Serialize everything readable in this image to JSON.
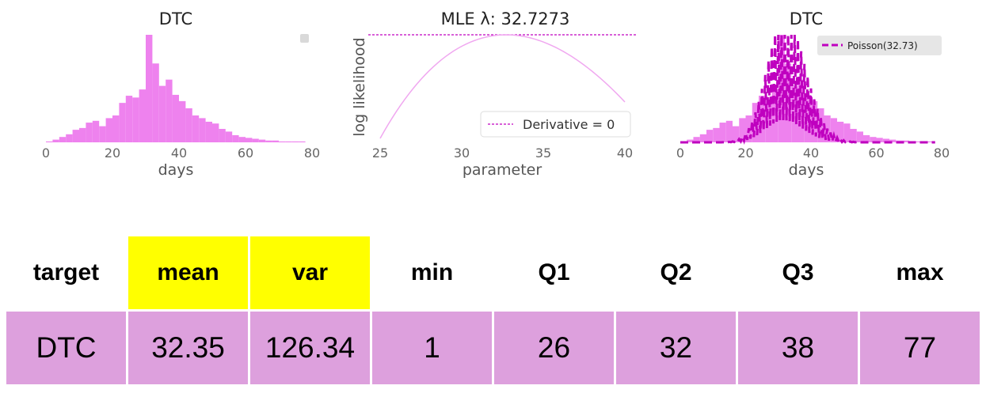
{
  "chart_data": [
    {
      "type": "bar",
      "title": "DTC",
      "xlabel": "days",
      "ylabel": "",
      "xlim": [
        0,
        80
      ],
      "x_ticks": [
        "0",
        "20",
        "40",
        "60",
        "80"
      ],
      "grid": false,
      "legend": "empty legend, top-right",
      "bin_centers": [
        1,
        3,
        5,
        7,
        9,
        11,
        13,
        15,
        17,
        19,
        21,
        23,
        25,
        27,
        29,
        31,
        33,
        35,
        37,
        39,
        41,
        43,
        45,
        47,
        49,
        51,
        53,
        55,
        57,
        59,
        61,
        63,
        65,
        67,
        69,
        71,
        73,
        75,
        77
      ],
      "values": [
        1,
        3,
        6,
        9,
        14,
        16,
        22,
        24,
        18,
        27,
        30,
        44,
        52,
        50,
        59,
        120,
        88,
        63,
        70,
        53,
        46,
        38,
        30,
        27,
        23,
        21,
        15,
        12,
        8,
        6,
        5,
        4,
        3,
        2,
        2,
        1,
        1,
        1,
        1
      ]
    },
    {
      "type": "line",
      "title": "MLE λ: 32.7273",
      "xlabel": "parameter",
      "ylabel": "log likelihood",
      "xlim": [
        25,
        40
      ],
      "x_ticks": [
        "25",
        "30",
        "35",
        "40"
      ],
      "grid": false,
      "legend": "bottom-right",
      "series": [
        {
          "name": "",
          "x_range": [
            25,
            40
          ],
          "curve": "log-likelihood of Poisson, maximum at 32.7273"
        },
        {
          "name": "Derivative = 0",
          "style": "dashed horizontal line at maximum"
        }
      ]
    },
    {
      "type": "bar",
      "title": "DTC",
      "xlabel": "days",
      "ylabel": "",
      "xlim": [
        0,
        80
      ],
      "x_ticks": [
        "0",
        "20",
        "40",
        "60",
        "80"
      ],
      "grid": false,
      "legend": "top-right",
      "bin_centers": [
        1,
        3,
        5,
        7,
        9,
        11,
        13,
        15,
        17,
        19,
        21,
        23,
        25,
        27,
        29,
        31,
        33,
        35,
        37,
        39,
        41,
        43,
        45,
        47,
        49,
        51,
        53,
        55,
        57,
        59,
        61,
        63,
        65,
        67,
        69,
        71,
        73,
        75,
        77
      ],
      "values": [
        1,
        3,
        6,
        9,
        14,
        16,
        22,
        24,
        18,
        27,
        30,
        44,
        52,
        50,
        59,
        120,
        88,
        63,
        70,
        53,
        46,
        38,
        30,
        27,
        23,
        21,
        15,
        12,
        8,
        6,
        5,
        4,
        3,
        2,
        2,
        1,
        1,
        1,
        1
      ],
      "series": [
        {
          "name": "Poisson(32.73)",
          "lambda": 32.73,
          "style": "dashed line"
        }
      ]
    }
  ],
  "colors": {
    "hist": "#ee82ee",
    "curve": "#f0a8f0",
    "dashed": "#c000c0",
    "poisson": "#bf00bf",
    "header_highlight": "#ffff00",
    "cell": "#dda0dd"
  },
  "table": {
    "headers": [
      "target",
      "mean",
      "var",
      "min",
      "Q1",
      "Q2",
      "Q3",
      "max"
    ],
    "row": [
      "DTC",
      "32.35",
      "126.34",
      "1",
      "26",
      "32",
      "38",
      "77"
    ]
  }
}
